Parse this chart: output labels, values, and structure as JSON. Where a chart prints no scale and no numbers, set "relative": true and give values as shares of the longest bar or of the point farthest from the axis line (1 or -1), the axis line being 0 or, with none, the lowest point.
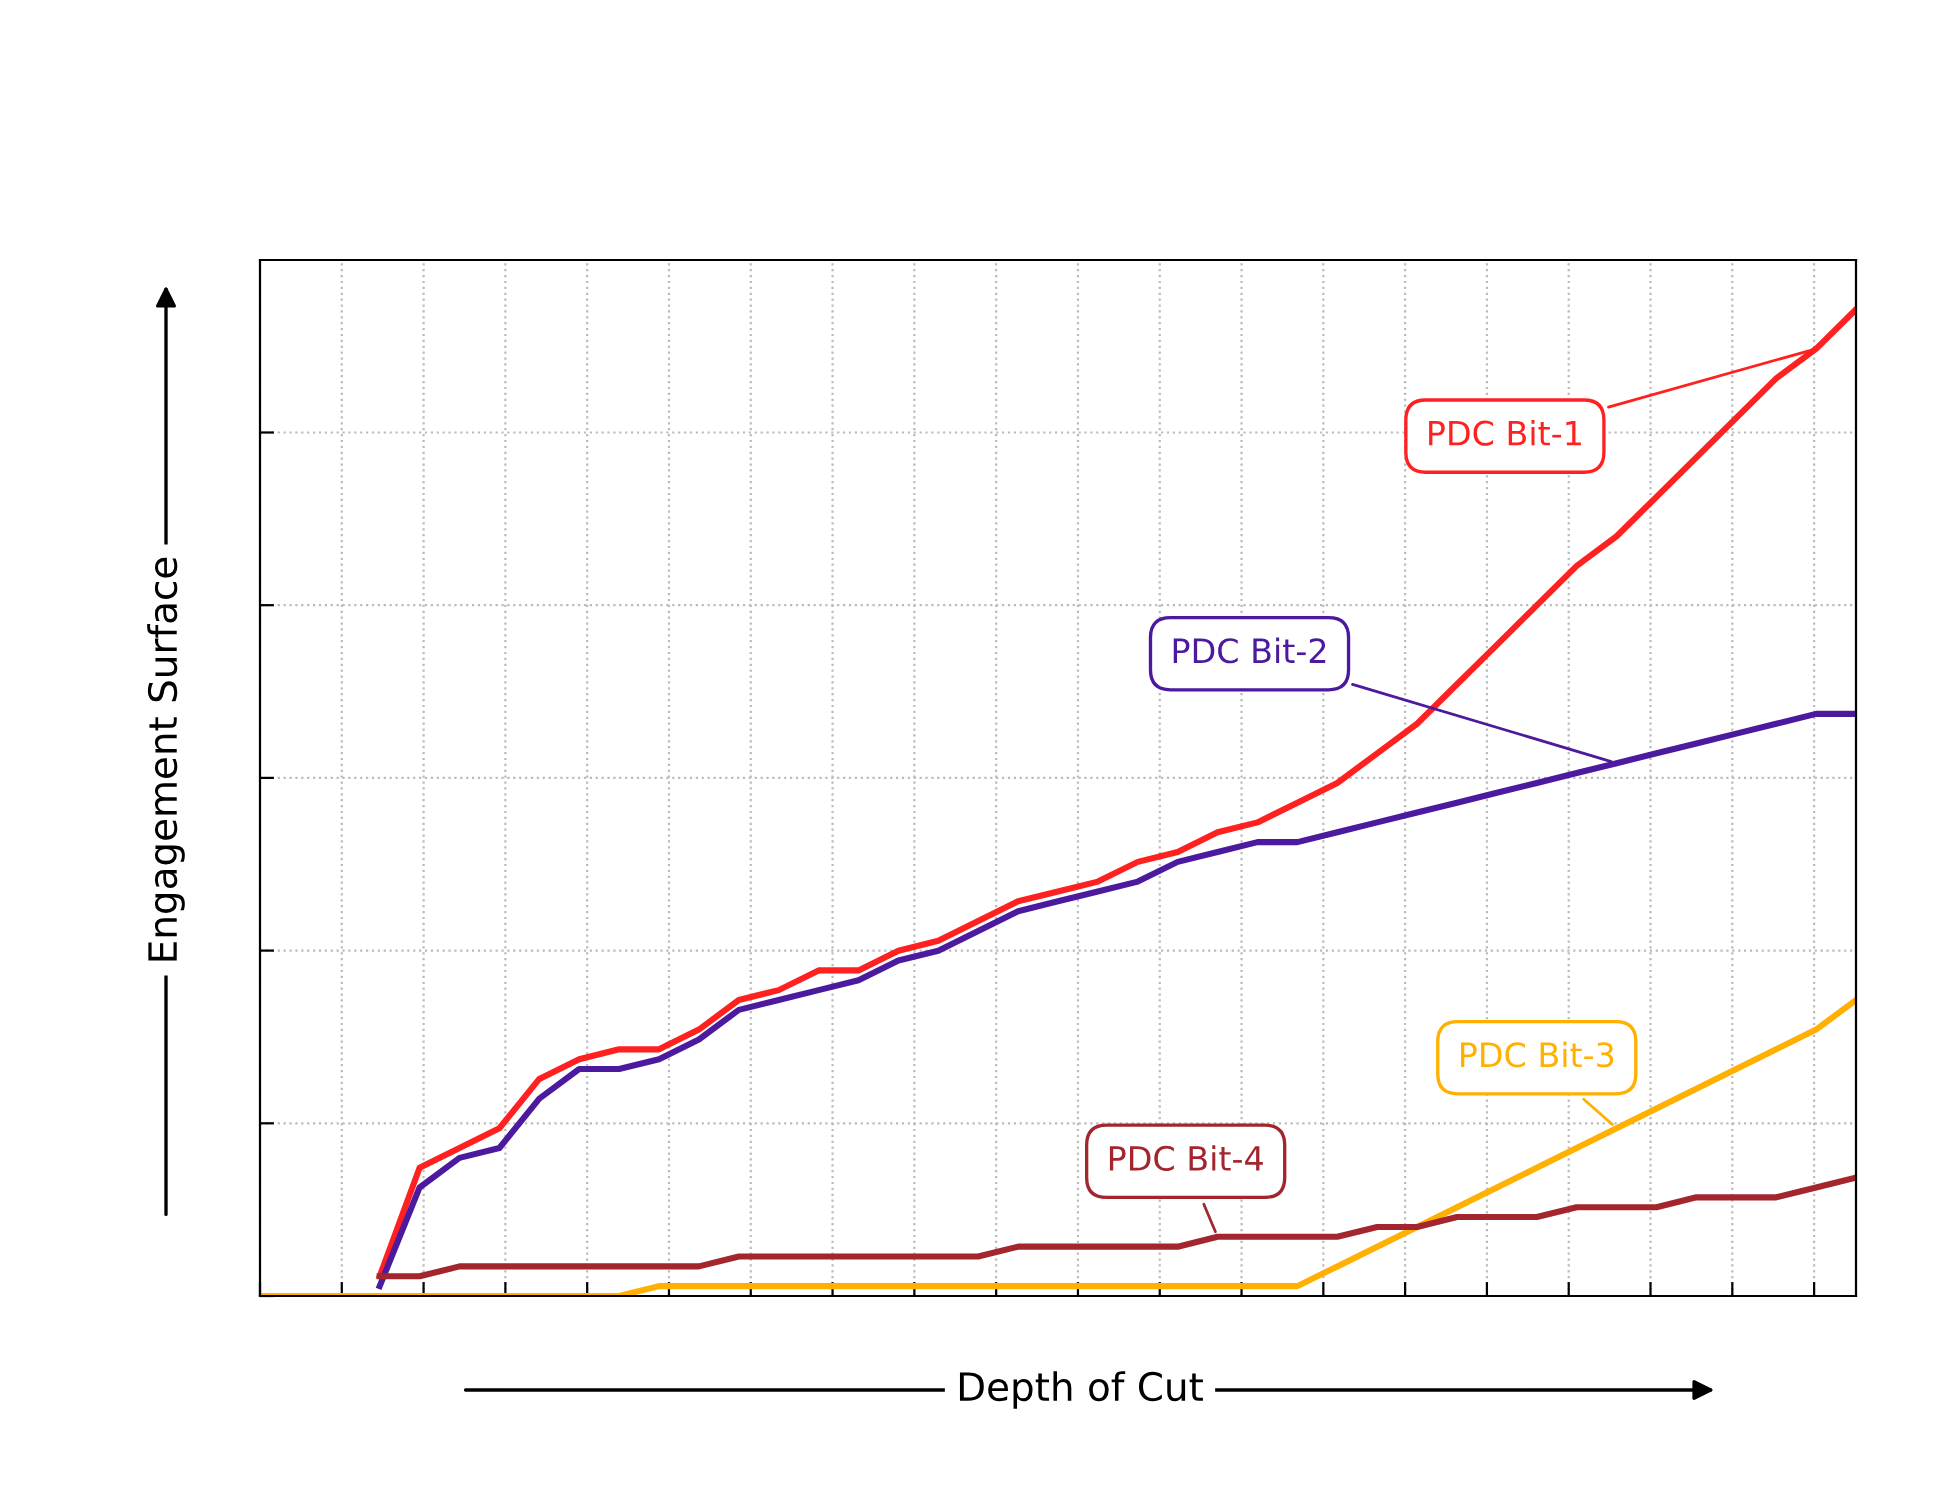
{
  "chart_data": {
    "type": "line",
    "relative": true,
    "xlabel": "Depth of Cut",
    "ylabel": "Engagement Surface",
    "grid": true,
    "legend": false,
    "marker": "none",
    "line_style": "solid",
    "categories": [
      null,
      null,
      null,
      null,
      null,
      null,
      null,
      null,
      null,
      null,
      null,
      null,
      null,
      null,
      null,
      null,
      null,
      null,
      null,
      null,
      null,
      null,
      null,
      null,
      null,
      null,
      null,
      null,
      null,
      null,
      null,
      null,
      null,
      null,
      null,
      null,
      null,
      null,
      null,
      null,
      null
    ],
    "series": [
      {
        "name": "PDC Bit-1",
        "color": "#ff2020",
        "values": [
          null,
          null,
          null,
          0.02,
          0.13,
          0.15,
          0.17,
          0.22,
          0.24,
          0.25,
          0.25,
          0.27,
          0.3,
          0.31,
          0.33,
          0.33,
          0.35,
          0.36,
          0.38,
          0.4,
          0.41,
          0.42,
          0.44,
          0.45,
          0.47,
          0.48,
          0.5,
          0.52,
          0.55,
          0.58,
          0.62,
          0.66,
          0.7,
          0.74,
          0.77,
          0.81,
          0.85,
          0.89,
          0.93,
          0.96,
          1
        ]
      },
      {
        "name": "PDC Bit-2",
        "color": "#4b1a9e",
        "values": [
          null,
          null,
          null,
          0.01,
          0.11,
          0.14,
          0.15,
          0.2,
          0.23,
          0.23,
          0.24,
          0.26,
          0.29,
          0.3,
          0.31,
          0.32,
          0.34,
          0.35,
          0.37,
          0.39,
          0.4,
          0.41,
          0.42,
          0.44,
          0.45,
          0.46,
          0.46,
          0.47,
          0.48,
          0.49,
          0.5,
          0.51,
          0.52,
          0.53,
          0.54,
          0.55,
          0.56,
          0.57,
          0.58,
          0.59,
          0.59
        ]
      },
      {
        "name": "PDC Bit-3",
        "color": "#ffb000",
        "values": [
          0,
          0,
          0,
          0,
          0,
          0,
          0,
          0,
          0,
          0,
          0.01,
          0.01,
          0.01,
          0.01,
          0.01,
          0.01,
          0.01,
          0.01,
          0.01,
          0.01,
          0.01,
          0.01,
          0.01,
          0.01,
          0.01,
          0.01,
          0.01,
          0.03,
          0.05,
          0.07,
          0.09,
          0.11,
          0.13,
          0.15,
          0.17,
          0.19,
          0.21,
          0.23,
          0.25,
          0.27,
          0.3
        ]
      },
      {
        "name": "PDC Bit-4",
        "color": "#a3262e",
        "values": [
          null,
          null,
          null,
          0.02,
          0.02,
          0.03,
          0.03,
          0.03,
          0.03,
          0.03,
          0.03,
          0.03,
          0.04,
          0.04,
          0.04,
          0.04,
          0.04,
          0.04,
          0.04,
          0.05,
          0.05,
          0.05,
          0.05,
          0.05,
          0.06,
          0.06,
          0.06,
          0.06,
          0.07,
          0.07,
          0.08,
          0.08,
          0.08,
          0.09,
          0.09,
          0.09,
          0.1,
          0.1,
          0.1,
          0.11,
          0.12
        ]
      }
    ]
  }
}
